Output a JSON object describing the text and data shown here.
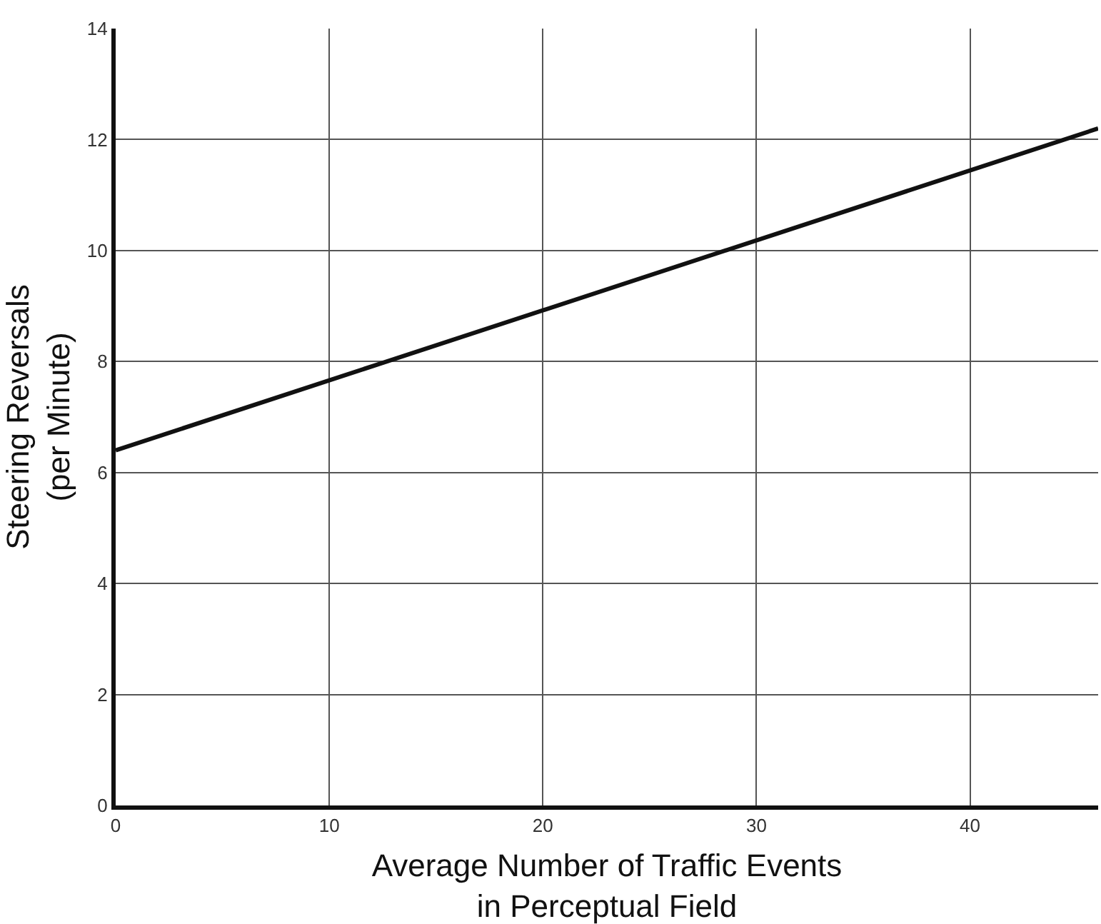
{
  "chart_data": {
    "type": "line",
    "xlabel": "Average Number of Traffic Events\nin Perceptual Field",
    "ylabel": "Steering Reversals\n(per Minute)",
    "x": [
      0,
      46
    ],
    "series": [
      {
        "color": "#111111",
        "values": [
          6.4,
          12.2
        ]
      }
    ],
    "xlim": [
      0,
      46
    ],
    "xticks": [
      0,
      10,
      20,
      30,
      40
    ],
    "ylim": [
      0,
      14
    ],
    "yticks": [
      0,
      2,
      4,
      6,
      8,
      10,
      12,
      14
    ],
    "grid": true,
    "marker": "none",
    "line_style": "solid"
  }
}
